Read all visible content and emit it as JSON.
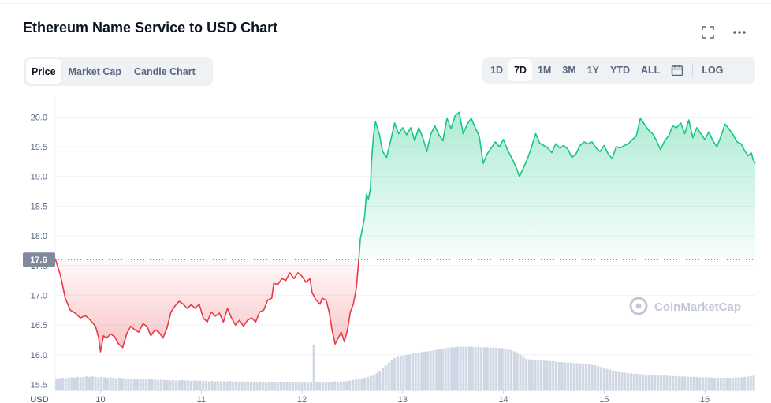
{
  "header": {
    "title": "Ethereum Name Service to USD Chart",
    "fullscreen_icon": "fullscreen-icon",
    "more_icon": "more-horizontal-icon"
  },
  "tabs": [
    {
      "label": "Price",
      "active": true
    },
    {
      "label": "Market Cap",
      "active": false
    },
    {
      "label": "Candle Chart",
      "active": false
    }
  ],
  "ranges": [
    {
      "label": "1D",
      "active": false
    },
    {
      "label": "7D",
      "active": true
    },
    {
      "label": "1M",
      "active": false
    },
    {
      "label": "3M",
      "active": false
    },
    {
      "label": "1Y",
      "active": false
    },
    {
      "label": "YTD",
      "active": false
    },
    {
      "label": "ALL",
      "active": false
    }
  ],
  "calendar_icon": "calendar-icon",
  "log_label": "LOG",
  "watermark": "CoinMarketCap",
  "colors": {
    "up": "#16c784",
    "down": "#ea3943",
    "volume": "#cfd6e4",
    "grid": "#eff2f5",
    "axis_text": "#58667e",
    "ref_label_bg": "#808a9d"
  },
  "chart_data": {
    "type": "line",
    "currency_label": "USD",
    "x_ticks": [
      "10",
      "11",
      "12",
      "13",
      "14",
      "15",
      "16"
    ],
    "x_range": [
      9.55,
      16.5
    ],
    "y_ticks": [
      "15.5",
      "16.0",
      "16.5",
      "17.0",
      "17.5",
      "18.0",
      "18.5",
      "19.0",
      "19.5",
      "20.0"
    ],
    "y_range": [
      15.4,
      20.35
    ],
    "reference_value": 17.6,
    "reference_label": "17.6",
    "grid": true,
    "series": [
      {
        "points": [
          [
            9.55,
            17.62
          ],
          [
            9.6,
            17.35
          ],
          [
            9.65,
            16.95
          ],
          [
            9.7,
            16.75
          ],
          [
            9.75,
            16.7
          ],
          [
            9.8,
            16.62
          ],
          [
            9.85,
            16.66
          ],
          [
            9.9,
            16.58
          ],
          [
            9.95,
            16.48
          ],
          [
            9.98,
            16.3
          ],
          [
            10.0,
            16.05
          ],
          [
            10.03,
            16.32
          ],
          [
            10.06,
            16.28
          ],
          [
            10.1,
            16.35
          ],
          [
            10.14,
            16.3
          ],
          [
            10.18,
            16.18
          ],
          [
            10.22,
            16.12
          ],
          [
            10.26,
            16.35
          ],
          [
            10.3,
            16.48
          ],
          [
            10.34,
            16.42
          ],
          [
            10.38,
            16.38
          ],
          [
            10.42,
            16.52
          ],
          [
            10.46,
            16.48
          ],
          [
            10.5,
            16.32
          ],
          [
            10.54,
            16.42
          ],
          [
            10.58,
            16.38
          ],
          [
            10.62,
            16.28
          ],
          [
            10.66,
            16.45
          ],
          [
            10.7,
            16.72
          ],
          [
            10.74,
            16.82
          ],
          [
            10.78,
            16.9
          ],
          [
            10.82,
            16.85
          ],
          [
            10.86,
            16.78
          ],
          [
            10.9,
            16.84
          ],
          [
            10.94,
            16.78
          ],
          [
            10.98,
            16.85
          ],
          [
            11.02,
            16.62
          ],
          [
            11.06,
            16.55
          ],
          [
            11.1,
            16.72
          ],
          [
            11.14,
            16.65
          ],
          [
            11.18,
            16.7
          ],
          [
            11.22,
            16.55
          ],
          [
            11.26,
            16.78
          ],
          [
            11.3,
            16.62
          ],
          [
            11.34,
            16.5
          ],
          [
            11.38,
            16.58
          ],
          [
            11.42,
            16.48
          ],
          [
            11.46,
            16.58
          ],
          [
            11.5,
            16.62
          ],
          [
            11.54,
            16.55
          ],
          [
            11.58,
            16.72
          ],
          [
            11.62,
            16.75
          ],
          [
            11.66,
            16.92
          ],
          [
            11.7,
            16.95
          ],
          [
            11.72,
            17.2
          ],
          [
            11.76,
            17.18
          ],
          [
            11.8,
            17.28
          ],
          [
            11.84,
            17.25
          ],
          [
            11.88,
            17.38
          ],
          [
            11.92,
            17.28
          ],
          [
            11.96,
            17.38
          ],
          [
            12.0,
            17.32
          ],
          [
            12.04,
            17.22
          ],
          [
            12.08,
            17.28
          ],
          [
            12.1,
            17.05
          ],
          [
            12.14,
            16.92
          ],
          [
            12.18,
            16.85
          ],
          [
            12.2,
            16.95
          ],
          [
            12.24,
            16.92
          ],
          [
            12.27,
            16.72
          ],
          [
            12.3,
            16.4
          ],
          [
            12.33,
            16.18
          ],
          [
            12.36,
            16.28
          ],
          [
            12.39,
            16.38
          ],
          [
            12.42,
            16.22
          ],
          [
            12.45,
            16.4
          ],
          [
            12.48,
            16.72
          ],
          [
            12.51,
            16.85
          ],
          [
            12.54,
            17.12
          ],
          [
            12.56,
            17.52
          ],
          [
            12.58,
            17.95
          ],
          [
            12.6,
            18.12
          ],
          [
            12.62,
            18.3
          ],
          [
            12.64,
            18.7
          ],
          [
            12.66,
            18.62
          ],
          [
            12.68,
            18.8
          ],
          [
            12.69,
            19.25
          ],
          [
            12.71,
            19.7
          ],
          [
            12.73,
            19.92
          ],
          [
            12.77,
            19.7
          ],
          [
            12.8,
            19.42
          ],
          [
            12.84,
            19.32
          ],
          [
            12.88,
            19.6
          ],
          [
            12.92,
            19.9
          ],
          [
            12.96,
            19.72
          ],
          [
            13.0,
            19.82
          ],
          [
            13.04,
            19.7
          ],
          [
            13.08,
            19.82
          ],
          [
            13.12,
            19.6
          ],
          [
            13.16,
            19.82
          ],
          [
            13.2,
            19.65
          ],
          [
            13.24,
            19.42
          ],
          [
            13.28,
            19.72
          ],
          [
            13.32,
            19.85
          ],
          [
            13.36,
            19.7
          ],
          [
            13.4,
            19.6
          ],
          [
            13.44,
            19.98
          ],
          [
            13.48,
            19.8
          ],
          [
            13.52,
            20.02
          ],
          [
            13.56,
            20.08
          ],
          [
            13.6,
            19.72
          ],
          [
            13.64,
            19.88
          ],
          [
            13.68,
            19.98
          ],
          [
            13.72,
            19.82
          ],
          [
            13.76,
            19.68
          ],
          [
            13.8,
            19.22
          ],
          [
            13.84,
            19.38
          ],
          [
            13.88,
            19.48
          ],
          [
            13.92,
            19.58
          ],
          [
            13.96,
            19.5
          ],
          [
            14.0,
            19.62
          ],
          [
            14.04,
            19.45
          ],
          [
            14.08,
            19.32
          ],
          [
            14.12,
            19.18
          ],
          [
            14.16,
            19.0
          ],
          [
            14.2,
            19.15
          ],
          [
            14.24,
            19.3
          ],
          [
            14.28,
            19.5
          ],
          [
            14.32,
            19.72
          ],
          [
            14.36,
            19.56
          ],
          [
            14.4,
            19.52
          ],
          [
            14.44,
            19.48
          ],
          [
            14.48,
            19.4
          ],
          [
            14.52,
            19.55
          ],
          [
            14.56,
            19.48
          ],
          [
            14.6,
            19.52
          ],
          [
            14.64,
            19.46
          ],
          [
            14.68,
            19.32
          ],
          [
            14.72,
            19.38
          ],
          [
            14.76,
            19.52
          ],
          [
            14.8,
            19.58
          ],
          [
            14.84,
            19.55
          ],
          [
            14.88,
            19.58
          ],
          [
            14.92,
            19.48
          ],
          [
            14.96,
            19.42
          ],
          [
            15.0,
            19.52
          ],
          [
            15.04,
            19.38
          ],
          [
            15.08,
            19.3
          ],
          [
            15.12,
            19.5
          ],
          [
            15.16,
            19.48
          ],
          [
            15.2,
            19.52
          ],
          [
            15.24,
            19.55
          ],
          [
            15.28,
            19.62
          ],
          [
            15.32,
            19.68
          ],
          [
            15.36,
            19.98
          ],
          [
            15.4,
            19.88
          ],
          [
            15.44,
            19.78
          ],
          [
            15.48,
            19.72
          ],
          [
            15.52,
            19.6
          ],
          [
            15.56,
            19.45
          ],
          [
            15.6,
            19.6
          ],
          [
            15.64,
            19.68
          ],
          [
            15.68,
            19.85
          ],
          [
            15.72,
            19.82
          ],
          [
            15.76,
            19.9
          ],
          [
            15.8,
            19.72
          ],
          [
            15.84,
            19.95
          ],
          [
            15.88,
            19.65
          ],
          [
            15.92,
            19.82
          ],
          [
            15.96,
            19.72
          ],
          [
            16.0,
            19.62
          ],
          [
            16.04,
            19.75
          ],
          [
            16.08,
            19.6
          ],
          [
            16.12,
            19.5
          ],
          [
            16.16,
            19.68
          ],
          [
            16.2,
            19.88
          ],
          [
            16.24,
            19.8
          ],
          [
            16.28,
            19.7
          ],
          [
            16.32,
            19.58
          ],
          [
            16.36,
            19.55
          ],
          [
            16.4,
            19.42
          ],
          [
            16.43,
            19.35
          ],
          [
            16.46,
            19.4
          ],
          [
            16.48,
            19.28
          ],
          [
            16.5,
            19.22
          ]
        ]
      }
    ],
    "volume": {
      "values": [
        0.25,
        0.27,
        0.28,
        0.27,
        0.28,
        0.29,
        0.28,
        0.3,
        0.29,
        0.3,
        0.31,
        0.3,
        0.31,
        0.3,
        0.29,
        0.3,
        0.29,
        0.28,
        0.29,
        0.28,
        0.27,
        0.28,
        0.27,
        0.26,
        0.27,
        0.26,
        0.25,
        0.26,
        0.25,
        0.25,
        0.24,
        0.25,
        0.24,
        0.24,
        0.23,
        0.24,
        0.23,
        0.23,
        0.22,
        0.23,
        0.22,
        0.22,
        0.23,
        0.22,
        0.22,
        0.21,
        0.22,
        0.21,
        0.22,
        0.21,
        0.21,
        0.2,
        0.21,
        0.2,
        0.21,
        0.2,
        0.2,
        0.2,
        0.21,
        0.2,
        0.2,
        0.19,
        0.2,
        0.19,
        0.2,
        0.19,
        0.19,
        0.19,
        0.2,
        0.19,
        0.19,
        0.18,
        0.19,
        0.18,
        0.19,
        0.18,
        0.18,
        0.18,
        0.19,
        0.18,
        0.18,
        0.18,
        0.17,
        0.18,
        0.17,
        0.18,
        1.0,
        0.19,
        0.18,
        0.18,
        0.19,
        0.18,
        0.19,
        0.2,
        0.19,
        0.2,
        0.2,
        0.21,
        0.22,
        0.23,
        0.24,
        0.25,
        0.27,
        0.28,
        0.3,
        0.32,
        0.35,
        0.38,
        0.42,
        0.5,
        0.56,
        0.62,
        0.68,
        0.72,
        0.75,
        0.77,
        0.78,
        0.79,
        0.8,
        0.82,
        0.83,
        0.84,
        0.85,
        0.86,
        0.87,
        0.88,
        0.89,
        0.9,
        0.92,
        0.93,
        0.94,
        0.95,
        0.96,
        0.96,
        0.97,
        0.97,
        0.97,
        0.97,
        0.97,
        0.97,
        0.96,
        0.97,
        0.96,
        0.96,
        0.96,
        0.95,
        0.95,
        0.95,
        0.94,
        0.94,
        0.93,
        0.92,
        0.9,
        0.87,
        0.84,
        0.8,
        0.74,
        0.7,
        0.69,
        0.68,
        0.68,
        0.67,
        0.67,
        0.66,
        0.66,
        0.65,
        0.65,
        0.64,
        0.63,
        0.63,
        0.62,
        0.62,
        0.62,
        0.61,
        0.61,
        0.6,
        0.6,
        0.59,
        0.58,
        0.57,
        0.56,
        0.54,
        0.52,
        0.5,
        0.48,
        0.46,
        0.44,
        0.42,
        0.41,
        0.4,
        0.39,
        0.38,
        0.38,
        0.37,
        0.37,
        0.36,
        0.36,
        0.35,
        0.35,
        0.34,
        0.34,
        0.34,
        0.33,
        0.33,
        0.33,
        0.32,
        0.32,
        0.32,
        0.31,
        0.31,
        0.31,
        0.3,
        0.3,
        0.3,
        0.3,
        0.29,
        0.29,
        0.29,
        0.29,
        0.29,
        0.28,
        0.28,
        0.28,
        0.28,
        0.28,
        0.28,
        0.28,
        0.29,
        0.29,
        0.29,
        0.3,
        0.31,
        0.32,
        0.33
      ]
    }
  }
}
